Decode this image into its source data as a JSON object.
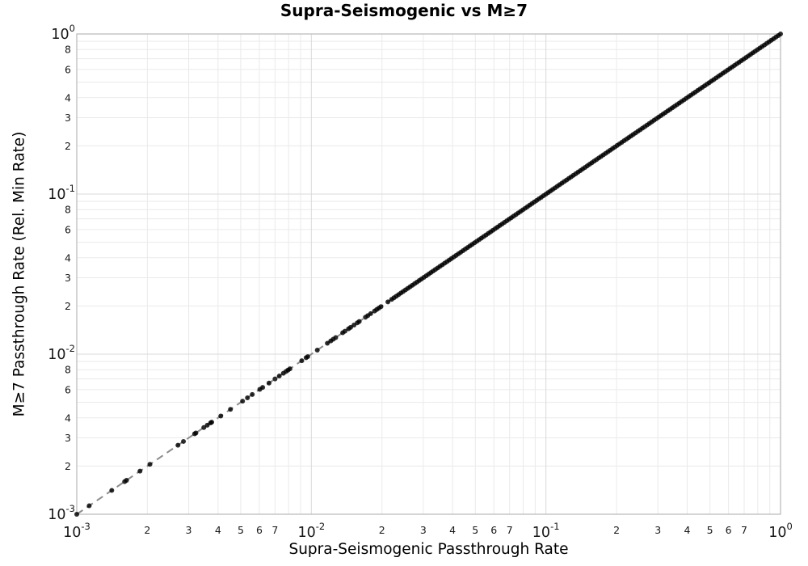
{
  "title": "Supra-Seismogenic vs M≥7",
  "chart_data": {
    "type": "scatter",
    "title": "Supra-Seismogenic vs M≥7",
    "xlabel": "Supra-Seismogenic Passthrough Rate",
    "ylabel": "M≥7 Passthrough Rate (Rel. Min Rate)",
    "x_scale": "log",
    "y_scale": "log",
    "xlim": [
      0.001,
      1.0
    ],
    "ylim": [
      0.001,
      1.0
    ],
    "grid": "both-major-and-minor",
    "legend": "none",
    "x_major_tick_exponents": [
      -3,
      -2,
      -1,
      0
    ],
    "y_major_tick_exponents": [
      -3,
      -2,
      -1,
      0
    ],
    "x_minor_labeled_digits": [
      2,
      3,
      4,
      5,
      6,
      7
    ],
    "y_minor_labeled_digits": [
      2,
      3,
      4,
      6,
      8
    ],
    "major_tick_base": "10",
    "reference_line": {
      "relation": "y = x",
      "style": "dashed",
      "color": "#8c8c8c",
      "from": 0.001,
      "to": 1.0
    },
    "series_note": "all scatter points lie on the identity line y = x",
    "points_low_x": [
      0.001,
      0.00113,
      0.00141,
      0.0016,
      0.00163,
      0.00186,
      0.00205,
      0.0027,
      0.00285,
      0.00318,
      0.00322,
      0.00348,
      0.0036,
      0.00372,
      0.00376,
      0.00411,
      0.00452,
      0.00509,
      0.00534,
      0.0056,
      0.00603,
      0.0062,
      0.0066,
      0.007,
      0.0073,
      0.0076,
      0.0078,
      0.00795,
      0.0081,
      0.0091,
      0.0095,
      0.00965,
      0.0106,
      0.0117,
      0.0121,
      0.0124,
      0.0127,
      0.0136,
      0.0139,
      0.0144,
      0.0147,
      0.0152,
      0.0157,
      0.016,
      0.017,
      0.0174,
      0.0179,
      0.0186,
      0.019,
      0.0194,
      0.0198,
      0.0212
    ],
    "dense_segment": {
      "from": 0.022,
      "to": 1.0,
      "count": 170,
      "spacing": "log"
    },
    "marker": {
      "shape": "circle",
      "color": "#000000",
      "opacity": 0.82,
      "radius_px": 3
    },
    "colors": {
      "background": "#ffffff",
      "plot_border": "#bdbdbd",
      "grid_major": "#d9d9d9",
      "grid_minor": "#eaeaea",
      "tick_label": "#171717",
      "dashed_line": "#8c8c8c",
      "point": "#000000"
    }
  }
}
